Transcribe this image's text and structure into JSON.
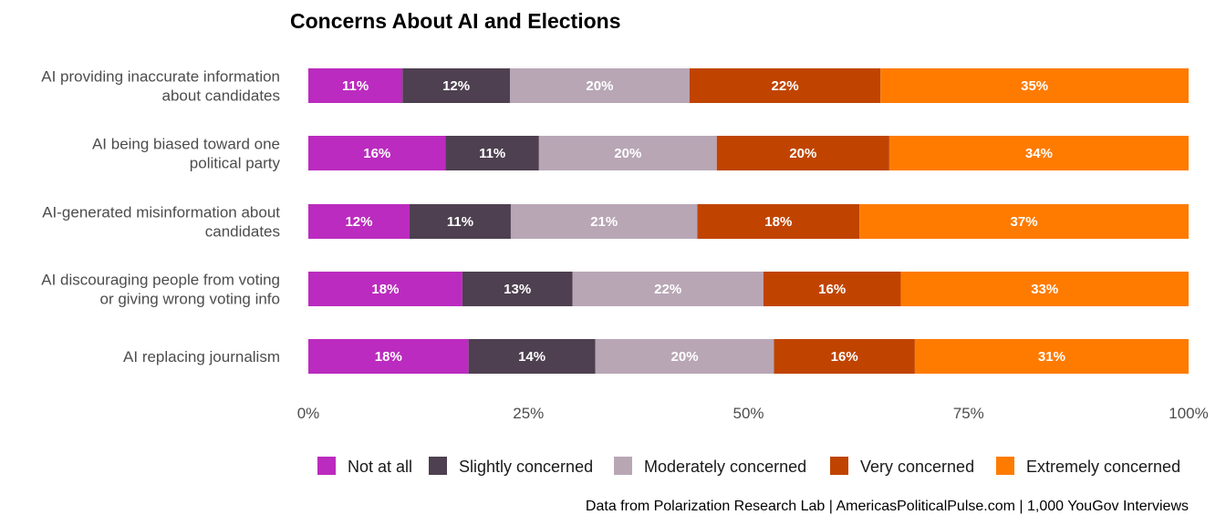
{
  "chart_data": {
    "type": "bar",
    "orientation": "horizontal-stacked-100",
    "title": "Concerns About AI and Elections",
    "caption": "Data from Polarization Research Lab | AmericasPoliticalPulse.com | 1,000 YouGov Interviews",
    "categories": [
      [
        "AI providing inaccurate information",
        "about candidates"
      ],
      [
        "AI being biased toward one",
        "political party"
      ],
      [
        "AI-generated misinformation about",
        "candidates"
      ],
      [
        "AI discouraging people from voting",
        "or giving wrong voting info"
      ],
      [
        "AI replacing journalism"
      ]
    ],
    "series": [
      {
        "name": "Not at all",
        "color": "#BB2BBF",
        "values": [
          10.7,
          15.6,
          11.5,
          17.5,
          18.2
        ],
        "labels": [
          "11%",
          "16%",
          "12%",
          "18%",
          "18%"
        ]
      },
      {
        "name": "Slightly concerned",
        "color": "#4E4050",
        "values": [
          12.2,
          10.6,
          11.5,
          12.5,
          14.4
        ],
        "labels": [
          "12%",
          "11%",
          "11%",
          "13%",
          "14%"
        ]
      },
      {
        "name": "Moderately concerned",
        "color": "#B8A6B5",
        "values": [
          20.4,
          20.2,
          21.2,
          21.7,
          20.3
        ],
        "labels": [
          "20%",
          "20%",
          "21%",
          "22%",
          "20%"
        ]
      },
      {
        "name": "Very concerned",
        "color": "#C04400",
        "values": [
          21.7,
          19.6,
          18.4,
          15.6,
          16.0
        ],
        "labels": [
          "22%",
          "20%",
          "18%",
          "16%",
          "16%"
        ]
      },
      {
        "name": "Extremely concerned",
        "color": "#FF7B00",
        "values": [
          35.0,
          34.0,
          37.4,
          32.7,
          31.1
        ],
        "labels": [
          "35%",
          "34%",
          "37%",
          "33%",
          "31%"
        ]
      }
    ],
    "xlim": [
      0,
      100
    ],
    "xticks": [
      0,
      25,
      50,
      75,
      100
    ],
    "xtick_labels": [
      "0%",
      "25%",
      "50%",
      "75%",
      "100%"
    ],
    "grid": false,
    "legend_position": "bottom"
  }
}
